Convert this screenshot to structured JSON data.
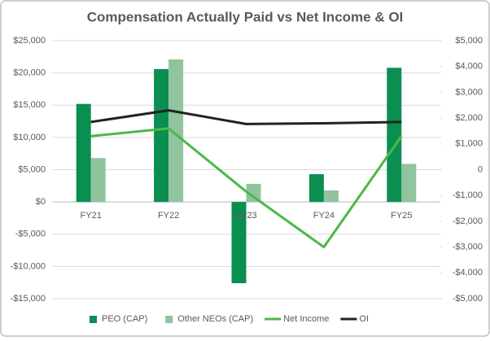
{
  "chart_data": {
    "type": "combo",
    "title": "Compensation Actually Paid vs Net Income & OI",
    "categories": [
      "FY21",
      "FY22",
      "FY23",
      "FY24",
      "FY25"
    ],
    "series": [
      {
        "name": "PEO (CAP)",
        "type": "bar",
        "color": "#0a8f50",
        "values": [
          15200,
          20600,
          -12600,
          4300,
          20800
        ]
      },
      {
        "name": "Other NEOs (CAP)",
        "type": "bar",
        "color": "#8fc49f",
        "values": [
          6800,
          22100,
          2800,
          1800,
          5900
        ]
      },
      {
        "name": "Net Income",
        "type": "line",
        "axis": "y2",
        "color": "#4cb849",
        "values": [
          1300,
          1600,
          -850,
          -3000,
          1300
        ]
      },
      {
        "name": "OI",
        "type": "line",
        "axis": "y2",
        "color": "#222222",
        "values": [
          1850,
          2300,
          1770,
          1800,
          1850
        ]
      }
    ],
    "ylim": [
      -15000,
      25000
    ],
    "yticks": [
      {
        "value": -15000,
        "label": "-$15,000"
      },
      {
        "value": -10000,
        "label": "-$10,000"
      },
      {
        "value": -5000,
        "label": "-$5,000"
      },
      {
        "value": 0,
        "label": "$0"
      },
      {
        "value": 5000,
        "label": "$5,000"
      },
      {
        "value": 10000,
        "label": "$10,000"
      },
      {
        "value": 15000,
        "label": "$15,000"
      },
      {
        "value": 20000,
        "label": "$20,000"
      },
      {
        "value": 25000,
        "label": "$25,000"
      }
    ],
    "y2lim": [
      -5000,
      5000
    ],
    "y2ticks": [
      {
        "value": -5000,
        "label": "-$5,000"
      },
      {
        "value": -4000,
        "label": "-$4,000"
      },
      {
        "value": -3000,
        "label": "-$3,000"
      },
      {
        "value": -2000,
        "label": "-$2,000"
      },
      {
        "value": -1000,
        "label": "-$1,000"
      },
      0,
      {
        "value": 1000,
        "label": "$1,000"
      },
      {
        "value": 2000,
        "label": "$2,000"
      },
      {
        "value": 3000,
        "label": "$3,000"
      },
      {
        "value": 4000,
        "label": "$4,000"
      },
      {
        "value": 5000,
        "label": "$5,000"
      }
    ],
    "legend": "bottom"
  }
}
